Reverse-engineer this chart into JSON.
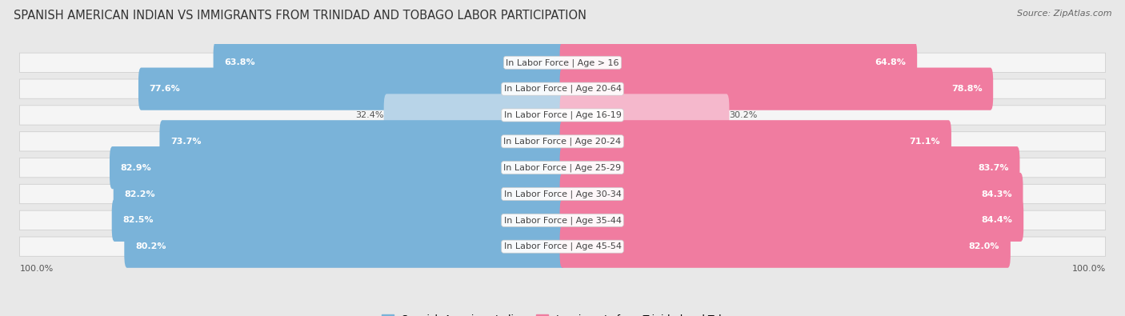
{
  "title": "SPANISH AMERICAN INDIAN VS IMMIGRANTS FROM TRINIDAD AND TOBAGO LABOR PARTICIPATION",
  "source": "Source: ZipAtlas.com",
  "categories": [
    "In Labor Force | Age > 16",
    "In Labor Force | Age 20-64",
    "In Labor Force | Age 16-19",
    "In Labor Force | Age 20-24",
    "In Labor Force | Age 25-29",
    "In Labor Force | Age 30-34",
    "In Labor Force | Age 35-44",
    "In Labor Force | Age 45-54"
  ],
  "left_values": [
    63.8,
    77.6,
    32.4,
    73.7,
    82.9,
    82.2,
    82.5,
    80.2
  ],
  "right_values": [
    64.8,
    78.8,
    30.2,
    71.1,
    83.7,
    84.3,
    84.4,
    82.0
  ],
  "left_color_high": "#7ab3d9",
  "left_color_low": "#b8d4e8",
  "right_color_high": "#f07ca0",
  "right_color_low": "#f5b8cc",
  "bar_height": 0.62,
  "background_color": "#e8e8e8",
  "row_bg_color": "#f5f5f5",
  "row_border_color": "#d0d0d0",
  "title_fontsize": 10.5,
  "source_fontsize": 8,
  "cat_fontsize": 8,
  "value_fontsize": 8,
  "legend_fontsize": 9,
  "axis_label_fontsize": 8,
  "max_value": 100.0,
  "left_label": "Spanish American Indian",
  "right_label": "Immigrants from Trinidad and Tobago",
  "threshold": 60.0
}
